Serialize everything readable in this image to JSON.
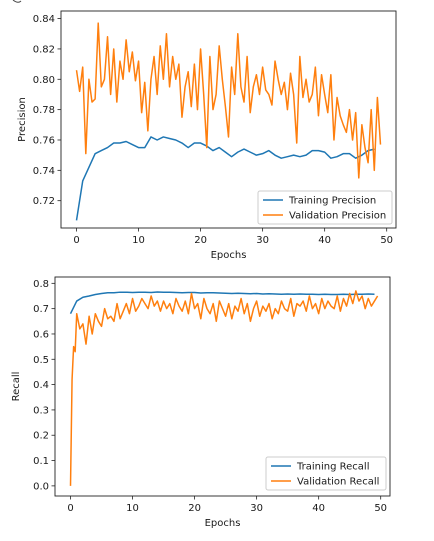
{
  "colors": {
    "training": "#1f77b4",
    "validation": "#ff7f0e"
  },
  "chart_data": [
    {
      "type": "line",
      "xlabel": "Epochs",
      "ylabel": "Precision",
      "xlim": [
        -2.5,
        51.5
      ],
      "ylim": [
        0.702,
        0.845
      ],
      "xticks": [
        0,
        10,
        20,
        30,
        40,
        50
      ],
      "yticks": [
        0.72,
        0.74,
        0.76,
        0.78,
        0.8,
        0.82,
        0.84
      ],
      "ytick_labels": [
        "0.72",
        "0.74",
        "0.76",
        "0.78",
        "0.80",
        "0.82",
        "0.84"
      ],
      "legend_position": "lower right",
      "grid": false,
      "series": [
        {
          "name": "Training Precision",
          "color": "#1f77b4",
          "x": [
            0,
            1,
            2,
            3,
            4,
            5,
            6,
            7,
            8,
            9,
            10,
            11,
            12,
            13,
            14,
            15,
            16,
            17,
            18,
            19,
            20,
            21,
            22,
            23,
            24,
            25,
            26,
            27,
            28,
            29,
            30,
            31,
            32,
            33,
            34,
            35,
            36,
            37,
            38,
            39,
            40,
            41,
            42,
            43,
            44,
            45,
            46,
            47,
            48
          ],
          "y": [
            0.707,
            0.733,
            0.742,
            0.751,
            0.753,
            0.755,
            0.758,
            0.758,
            0.759,
            0.757,
            0.755,
            0.755,
            0.762,
            0.76,
            0.762,
            0.761,
            0.76,
            0.758,
            0.755,
            0.758,
            0.758,
            0.756,
            0.753,
            0.755,
            0.752,
            0.749,
            0.752,
            0.754,
            0.752,
            0.75,
            0.751,
            0.753,
            0.75,
            0.748,
            0.749,
            0.75,
            0.749,
            0.75,
            0.753,
            0.753,
            0.752,
            0.748,
            0.749,
            0.751,
            0.751,
            0.748,
            0.75,
            0.753,
            0.754
          ]
        },
        {
          "name": "Validation Precision",
          "color": "#ff7f0e",
          "x": [
            0,
            0.5,
            1,
            1.5,
            2,
            2.5,
            3,
            3.5,
            4,
            4.5,
            5,
            5.5,
            6,
            6.5,
            7,
            7.5,
            8,
            8.5,
            9,
            9.5,
            10,
            10.5,
            11,
            11.5,
            12,
            12.5,
            13,
            13.5,
            14,
            14.5,
            15,
            15.5,
            16,
            16.5,
            17,
            17.5,
            18,
            18.5,
            19,
            19.5,
            20,
            20.5,
            21,
            21.5,
            22,
            22.5,
            23,
            23.5,
            24,
            24.5,
            25,
            25.5,
            26,
            26.5,
            27,
            27.5,
            28,
            28.5,
            29,
            29.5,
            30,
            30.5,
            31,
            31.5,
            32,
            32.5,
            33,
            33.5,
            34,
            34.5,
            35,
            35.5,
            36,
            36.5,
            37,
            37.5,
            38,
            38.5,
            39,
            39.5,
            40,
            40.5,
            41,
            41.5,
            42,
            42.5,
            43,
            43.5,
            44,
            44.5,
            45,
            45.5,
            46,
            46.5,
            47,
            47.5,
            48,
            48.5,
            49
          ],
          "y": [
            0.806,
            0.792,
            0.808,
            0.751,
            0.8,
            0.785,
            0.787,
            0.837,
            0.795,
            0.8,
            0.828,
            0.79,
            0.82,
            0.785,
            0.812,
            0.8,
            0.826,
            0.805,
            0.818,
            0.799,
            0.812,
            0.778,
            0.798,
            0.766,
            0.8,
            0.815,
            0.79,
            0.822,
            0.8,
            0.83,
            0.795,
            0.815,
            0.8,
            0.81,
            0.775,
            0.795,
            0.805,
            0.782,
            0.81,
            0.78,
            0.82,
            0.79,
            0.755,
            0.815,
            0.78,
            0.79,
            0.822,
            0.8,
            0.782,
            0.762,
            0.808,
            0.79,
            0.83,
            0.795,
            0.785,
            0.815,
            0.778,
            0.795,
            0.803,
            0.79,
            0.808,
            0.793,
            0.79,
            0.783,
            0.812,
            0.8,
            0.79,
            0.798,
            0.78,
            0.804,
            0.79,
            0.758,
            0.815,
            0.788,
            0.8,
            0.785,
            0.79,
            0.808,
            0.776,
            0.803,
            0.79,
            0.778,
            0.803,
            0.76,
            0.788,
            0.776,
            0.77,
            0.765,
            0.78,
            0.76,
            0.778,
            0.735,
            0.77,
            0.755,
            0.745,
            0.78,
            0.74,
            0.788,
            0.757
          ]
        }
      ]
    },
    {
      "type": "line",
      "xlabel": "Epochs",
      "ylabel": "Recall",
      "xlim": [
        -2.5,
        51.5
      ],
      "ylim": [
        -0.04,
        0.825
      ],
      "xticks": [
        0,
        10,
        20,
        30,
        40,
        50
      ],
      "yticks": [
        0.0,
        0.1,
        0.2,
        0.3,
        0.4,
        0.5,
        0.6,
        0.7,
        0.8
      ],
      "ytick_labels": [
        "0.0",
        "0.1",
        "0.2",
        "0.3",
        "0.4",
        "0.5",
        "0.6",
        "0.7",
        "0.8"
      ],
      "legend_position": "lower right",
      "grid": false,
      "series": [
        {
          "name": "Training Recall",
          "color": "#1f77b4",
          "x": [
            0,
            1,
            2,
            3,
            4,
            5,
            6,
            7,
            8,
            9,
            10,
            11,
            12,
            13,
            14,
            15,
            16,
            17,
            18,
            19,
            20,
            21,
            22,
            23,
            24,
            25,
            26,
            27,
            28,
            29,
            30,
            31,
            32,
            33,
            34,
            35,
            36,
            37,
            38,
            39,
            40,
            41,
            42,
            43,
            44,
            45,
            46,
            47,
            48,
            49
          ],
          "y": [
            0.68,
            0.73,
            0.745,
            0.75,
            0.756,
            0.76,
            0.763,
            0.763,
            0.765,
            0.765,
            0.764,
            0.765,
            0.765,
            0.764,
            0.766,
            0.765,
            0.765,
            0.764,
            0.763,
            0.764,
            0.764,
            0.762,
            0.763,
            0.763,
            0.762,
            0.761,
            0.76,
            0.761,
            0.76,
            0.759,
            0.76,
            0.758,
            0.759,
            0.758,
            0.757,
            0.758,
            0.757,
            0.758,
            0.757,
            0.757,
            0.756,
            0.757,
            0.756,
            0.756,
            0.757,
            0.756,
            0.757,
            0.757,
            0.758,
            0.757
          ]
        },
        {
          "name": "Validation Recall",
          "color": "#ff7f0e",
          "x": [
            0,
            0.25,
            0.5,
            0.75,
            1,
            1.5,
            2,
            2.5,
            3,
            3.5,
            4,
            4.5,
            5,
            5.5,
            6,
            6.5,
            7,
            7.5,
            8,
            8.5,
            9,
            9.5,
            10,
            10.5,
            11,
            11.5,
            12,
            12.5,
            13,
            13.5,
            14,
            14.5,
            15,
            15.5,
            16,
            16.5,
            17,
            17.5,
            18,
            18.5,
            19,
            19.5,
            20,
            20.5,
            21,
            21.5,
            22,
            22.5,
            23,
            23.5,
            24,
            24.5,
            25,
            25.5,
            26,
            26.5,
            27,
            27.5,
            28,
            28.5,
            29,
            29.5,
            30,
            30.5,
            31,
            31.5,
            32,
            32.5,
            33,
            33.5,
            34,
            34.5,
            35,
            35.5,
            36,
            36.5,
            37,
            37.5,
            38,
            38.5,
            39,
            39.5,
            40,
            40.5,
            41,
            41.5,
            42,
            42.5,
            43,
            43.5,
            44,
            44.5,
            45,
            45.5,
            46,
            46.5,
            47,
            47.5,
            48,
            48.5,
            49,
            49.5
          ],
          "y": [
            0.0,
            0.42,
            0.55,
            0.53,
            0.68,
            0.62,
            0.64,
            0.56,
            0.67,
            0.6,
            0.68,
            0.65,
            0.63,
            0.7,
            0.66,
            0.67,
            0.65,
            0.72,
            0.66,
            0.69,
            0.72,
            0.68,
            0.74,
            0.69,
            0.71,
            0.74,
            0.72,
            0.7,
            0.75,
            0.71,
            0.73,
            0.69,
            0.73,
            0.7,
            0.72,
            0.68,
            0.74,
            0.71,
            0.69,
            0.73,
            0.68,
            0.76,
            0.7,
            0.72,
            0.66,
            0.74,
            0.7,
            0.68,
            0.72,
            0.65,
            0.73,
            0.7,
            0.67,
            0.72,
            0.66,
            0.71,
            0.69,
            0.74,
            0.68,
            0.72,
            0.65,
            0.7,
            0.73,
            0.67,
            0.71,
            0.69,
            0.72,
            0.66,
            0.7,
            0.68,
            0.73,
            0.7,
            0.69,
            0.74,
            0.67,
            0.72,
            0.71,
            0.73,
            0.69,
            0.75,
            0.7,
            0.72,
            0.68,
            0.74,
            0.7,
            0.73,
            0.71,
            0.7,
            0.75,
            0.69,
            0.74,
            0.71,
            0.76,
            0.72,
            0.77,
            0.73,
            0.75,
            0.7,
            0.74,
            0.71,
            0.73,
            0.75
          ]
        }
      ]
    }
  ]
}
